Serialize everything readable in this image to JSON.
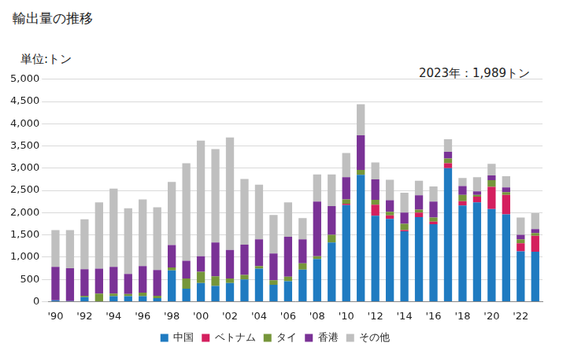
{
  "chart_data": {
    "type": "bar",
    "title": "輸出量の推移",
    "ylabel": "単位:トン",
    "annotation": "2023年：1,989トン",
    "stacked": true,
    "grid": true,
    "legend": "bottom",
    "categories": [
      "'90",
      null,
      "'92",
      null,
      "'94",
      null,
      "'96",
      null,
      "'98",
      null,
      "'00",
      null,
      "'02",
      null,
      "'04",
      null,
      "'06",
      null,
      "'08",
      null,
      "'10",
      null,
      "'12",
      null,
      "'14",
      null,
      "'16",
      null,
      "'18",
      null,
      "'20",
      null,
      "'22",
      null
    ],
    "series": [
      {
        "name": "中国",
        "color": "#1f7bc1",
        "values": [
          30,
          10,
          100,
          0,
          120,
          120,
          120,
          80,
          700,
          290,
          420,
          350,
          420,
          500,
          740,
          380,
          460,
          720,
          960,
          1330,
          2170,
          2850,
          1930,
          1860,
          1580,
          1900,
          1740,
          3000,
          2160,
          2230,
          2080,
          1960,
          1130,
          1120
        ]
      },
      {
        "name": "ベトナム",
        "color": "#d41f5e",
        "values": [
          0,
          0,
          0,
          0,
          0,
          0,
          0,
          0,
          0,
          0,
          0,
          0,
          0,
          0,
          0,
          0,
          0,
          0,
          0,
          0,
          30,
          0,
          250,
          80,
          30,
          100,
          60,
          110,
          100,
          130,
          500,
          440,
          180,
          360
        ]
      },
      {
        "name": "タイ",
        "color": "#76963a",
        "values": [
          0,
          0,
          30,
          180,
          60,
          50,
          80,
          50,
          70,
          230,
          250,
          220,
          100,
          100,
          60,
          100,
          100,
          140,
          60,
          170,
          100,
          110,
          110,
          80,
          140,
          70,
          90,
          110,
          140,
          40,
          150,
          60,
          90,
          60
        ]
      },
      {
        "name": "香港",
        "color": "#7a3296",
        "values": [
          750,
          740,
          600,
          560,
          600,
          450,
          600,
          580,
          500,
          400,
          350,
          760,
          640,
          680,
          600,
          600,
          900,
          540,
          1230,
          650,
          500,
          780,
          460,
          260,
          250,
          320,
          360,
          150,
          200,
          80,
          110,
          110,
          100,
          90
        ]
      },
      {
        "name": "その他",
        "color": "#bfbfbf",
        "values": [
          830,
          860,
          1120,
          1490,
          1760,
          1480,
          1500,
          1410,
          1420,
          2190,
          2600,
          2100,
          2530,
          1480,
          1230,
          870,
          770,
          480,
          610,
          710,
          540,
          700,
          380,
          460,
          450,
          330,
          340,
          280,
          180,
          320,
          260,
          250,
          390,
          359
        ]
      }
    ],
    "ylim": [
      0,
      5000
    ],
    "yticks": [
      0,
      500,
      {
        "value": 1000,
        "label": "1,000"
      },
      {
        "value": 1500,
        "label": "1,500"
      },
      {
        "value": 2000,
        "label": "2,000"
      },
      {
        "value": 2500,
        "label": "2,500"
      },
      {
        "value": 3000,
        "label": "3,000"
      },
      {
        "value": 3500,
        "label": "3,500"
      },
      {
        "value": 4000,
        "label": "4,000"
      },
      {
        "value": 4500,
        "label": "4,500"
      },
      {
        "value": 5000,
        "label": "5,000"
      }
    ]
  }
}
